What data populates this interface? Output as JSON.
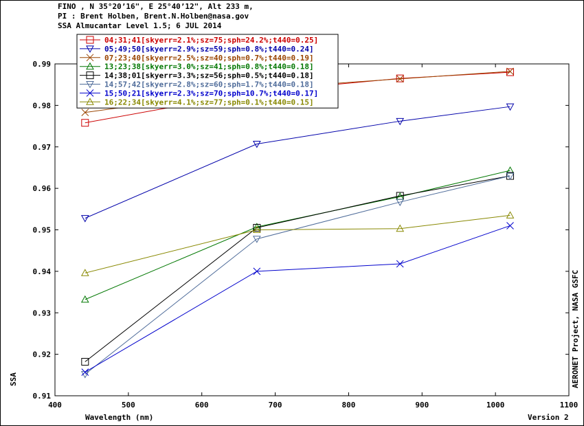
{
  "header": {
    "line1": "FINO , N 35°20’16\", E 25°40’12\", Alt 233 m,",
    "line2": "PI : Brent Holben, Brent.N.Holben@nasa.gov",
    "line3": "SSA Almucantar Level 1.5; 6 JUL 2014"
  },
  "chart_data": {
    "type": "line",
    "xlabel": "Wavelength (nm)",
    "ylabel": "SSA",
    "xlim": [
      400,
      1100
    ],
    "ylim": [
      0.91,
      0.99
    ],
    "x_ticks": [
      400,
      500,
      600,
      700,
      800,
      900,
      1000,
      1100
    ],
    "y_ticks": [
      0.91,
      0.92,
      0.93,
      0.94,
      0.95,
      0.96,
      0.97,
      0.98,
      0.99
    ],
    "x_tick_labels": [
      "400",
      "500",
      "600",
      "700",
      "800",
      "900",
      "1000",
      "1100"
    ],
    "y_tick_labels": [
      "0.91",
      "0.92",
      "0.93",
      "0.94",
      "0.95",
      "0.96",
      "0.97",
      "0.98",
      "0.99"
    ],
    "grid": false,
    "legend_position": "top-left",
    "right_label": "AERONET Project, NASA GSFC",
    "version_label": "Version 2",
    "x": [
      441,
      675,
      870,
      1020
    ],
    "series": [
      {
        "name": "04;31;41[skyerr=2.1%;sz=75;sph=24.2%;t440=0.25]",
        "color": "#cc0000",
        "marker": "square",
        "values": [
          0.9758,
          0.9833,
          0.9865,
          0.988
        ]
      },
      {
        "name": "05;49;50[skyerr=2.9%;sz=59;sph=0.8%;t440=0.24]",
        "color": "#0000aa",
        "marker": "triangle-down",
        "values": [
          0.9528,
          0.9707,
          0.9762,
          0.9797
        ]
      },
      {
        "name": "07;23;40[skyerr=2.5%;sz=40;sph=0.7%;t440=0.19]",
        "color": "#994400",
        "marker": "x",
        "values": [
          0.9783,
          0.984,
          0.9864,
          0.9882
        ]
      },
      {
        "name": "13;23;38[skyerr=3.0%;sz=41;sph=0.8%;t440=0.18]",
        "color": "#007700",
        "marker": "triangle-up",
        "values": [
          0.9332,
          0.9507,
          0.958,
          0.9643
        ]
      },
      {
        "name": "14;38;01[skyerr=3.3%;sz=56;sph=0.5%;t440=0.18]",
        "color": "#000000",
        "marker": "square",
        "values": [
          0.9182,
          0.9505,
          0.9582,
          0.963
        ]
      },
      {
        "name": "14;57;42[skyerr=2.8%;sz=60;sph=1.7%;t440=0.18]",
        "color": "#4f6c9a",
        "marker": "triangle-down",
        "values": [
          0.9152,
          0.9478,
          0.9567,
          0.963
        ]
      },
      {
        "name": "15;50;21[skyerr=2.3%;sz=70;sph=10.7%;t440=0.17]",
        "color": "#0000cc",
        "marker": "x",
        "values": [
          0.9157,
          0.94,
          0.9418,
          0.951
        ]
      },
      {
        "name": "16;22;34[skyerr=4.1%;sz=77;sph=0.1%;t440=0.15]",
        "color": "#888800",
        "marker": "triangle-up",
        "values": [
          0.9396,
          0.95,
          0.9503,
          0.9535
        ]
      }
    ]
  }
}
